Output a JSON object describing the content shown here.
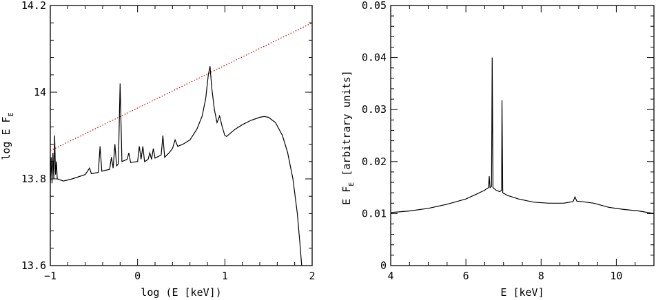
{
  "chart_data": [
    {
      "type": "line",
      "xlabel": "log (E [keV])",
      "ylabel_main": "log E F",
      "ylabel_sub": "E",
      "xlim": [
        -1,
        2
      ],
      "ylim": [
        13.6,
        14.2
      ],
      "xticks": [
        -1,
        0,
        1,
        2
      ],
      "yticks": [
        13.6,
        13.8,
        14,
        14.2
      ],
      "ytick_labels": [
        "13.6",
        "13.8",
        "14",
        "14.2"
      ],
      "xtick_labels": [
        "−1",
        "0",
        "1",
        "2"
      ],
      "series": [
        {
          "style": "dotted-red",
          "points": [
            [
              -1,
              13.865
            ],
            [
              2,
              14.16
            ]
          ]
        },
        {
          "style": "solid-black",
          "points": [
            [
              -1.0,
              13.79
            ],
            [
              -0.99,
              13.85
            ],
            [
              -0.98,
              13.79
            ],
            [
              -0.97,
              13.86
            ],
            [
              -0.96,
              13.8
            ],
            [
              -0.95,
              13.9
            ],
            [
              -0.94,
              13.81
            ],
            [
              -0.93,
              13.84
            ],
            [
              -0.92,
              13.8
            ],
            [
              -0.85,
              13.795
            ],
            [
              -0.75,
              13.8
            ],
            [
              -0.6,
              13.81
            ],
            [
              -0.55,
              13.825
            ],
            [
              -0.53,
              13.812
            ],
            [
              -0.45,
              13.815
            ],
            [
              -0.43,
              13.875
            ],
            [
              -0.41,
              13.818
            ],
            [
              -0.32,
              13.822
            ],
            [
              -0.3,
              13.85
            ],
            [
              -0.28,
              13.825
            ],
            [
              -0.26,
              13.88
            ],
            [
              -0.24,
              13.83
            ],
            [
              -0.22,
              13.835
            ],
            [
              -0.2,
              14.02
            ],
            [
              -0.18,
              13.84
            ],
            [
              -0.12,
              13.845
            ],
            [
              -0.1,
              13.86
            ],
            [
              -0.08,
              13.838
            ],
            [
              0.0,
              13.84
            ],
            [
              0.02,
              13.875
            ],
            [
              0.04,
              13.845
            ],
            [
              0.06,
              13.875
            ],
            [
              0.08,
              13.84
            ],
            [
              0.12,
              13.845
            ],
            [
              0.14,
              13.86
            ],
            [
              0.16,
              13.845
            ],
            [
              0.18,
              13.87
            ],
            [
              0.2,
              13.848
            ],
            [
              0.27,
              13.855
            ],
            [
              0.29,
              13.9
            ],
            [
              0.31,
              13.85
            ],
            [
              0.36,
              13.86
            ],
            [
              0.4,
              13.87
            ],
            [
              0.43,
              13.89
            ],
            [
              0.46,
              13.875
            ],
            [
              0.52,
              13.88
            ],
            [
              0.6,
              13.89
            ],
            [
              0.68,
              13.915
            ],
            [
              0.74,
              13.945
            ],
            [
              0.78,
              13.985
            ],
            [
              0.81,
              14.04
            ],
            [
              0.83,
              14.06
            ],
            [
              0.85,
              14.01
            ],
            [
              0.88,
              13.96
            ],
            [
              0.91,
              13.93
            ],
            [
              0.94,
              13.945
            ],
            [
              0.97,
              13.92
            ],
            [
              1.0,
              13.9
            ],
            [
              1.02,
              13.898
            ],
            [
              1.06,
              13.905
            ],
            [
              1.12,
              13.915
            ],
            [
              1.2,
              13.925
            ],
            [
              1.3,
              13.935
            ],
            [
              1.4,
              13.942
            ],
            [
              1.45,
              13.944
            ],
            [
              1.5,
              13.942
            ],
            [
              1.58,
              13.93
            ],
            [
              1.66,
              13.9
            ],
            [
              1.72,
              13.86
            ],
            [
              1.78,
              13.8
            ],
            [
              1.83,
              13.72
            ],
            [
              1.86,
              13.65
            ],
            [
              1.88,
              13.6
            ]
          ]
        }
      ]
    },
    {
      "type": "line",
      "xlabel": "E [keV]",
      "ylabel_main": "E F",
      "ylabel_sub": "E",
      "ylabel_tail": " [arbitrary units]",
      "xlim": [
        4,
        11
      ],
      "ylim": [
        0,
        0.05
      ],
      "xticks": [
        4,
        6,
        8,
        10
      ],
      "yticks": [
        0,
        0.01,
        0.02,
        0.03,
        0.04,
        0.05
      ],
      "xtick_labels": [
        "4",
        "6",
        "8",
        "10"
      ],
      "ytick_labels": [
        "0",
        "0.01",
        "0.02",
        "0.03",
        "0.04",
        "0.05"
      ],
      "series": [
        {
          "style": "solid-black",
          "points": [
            [
              4.0,
              0.0102
            ],
            [
              4.5,
              0.0105
            ],
            [
              5.0,
              0.011
            ],
            [
              5.5,
              0.0118
            ],
            [
              6.0,
              0.0128
            ],
            [
              6.3,
              0.0138
            ],
            [
              6.5,
              0.0145
            ],
            [
              6.6,
              0.015
            ],
            [
              6.62,
              0.0172
            ],
            [
              6.64,
              0.015
            ],
            [
              6.68,
              0.0152
            ],
            [
              6.7,
              0.04
            ],
            [
              6.72,
              0.015
            ],
            [
              6.8,
              0.0145
            ],
            [
              6.9,
              0.0142
            ],
            [
              6.95,
              0.0145
            ],
            [
              6.96,
              0.0318
            ],
            [
              6.98,
              0.014
            ],
            [
              7.1,
              0.0135
            ],
            [
              7.4,
              0.0128
            ],
            [
              7.8,
              0.0122
            ],
            [
              8.2,
              0.012
            ],
            [
              8.6,
              0.012
            ],
            [
              8.85,
              0.0123
            ],
            [
              8.9,
              0.0132
            ],
            [
              8.95,
              0.0124
            ],
            [
              9.2,
              0.0122
            ],
            [
              9.4,
              0.012
            ],
            [
              9.8,
              0.0112
            ],
            [
              10.2,
              0.0108
            ],
            [
              10.6,
              0.0105
            ],
            [
              11.0,
              0.01
            ]
          ]
        }
      ]
    }
  ]
}
